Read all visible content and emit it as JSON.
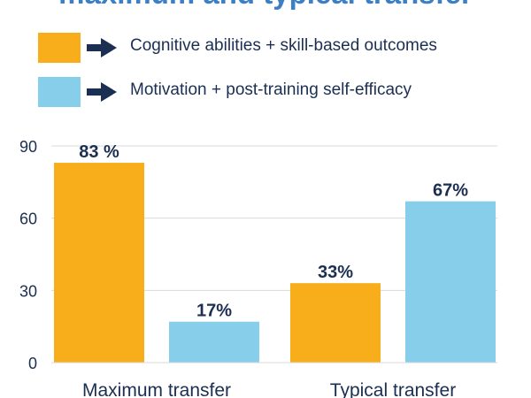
{
  "chart_data": {
    "type": "bar",
    "title": "maximum and typical transfer",
    "categories": [
      "Maximum transfer",
      "Typical transfer"
    ],
    "series": [
      {
        "name": "Cognitive abilities + skill-based outcomes",
        "color": "#f8ad1a",
        "values": [
          83,
          33
        ],
        "labels": [
          "83 %",
          "33%"
        ]
      },
      {
        "name": "Motivation + post-training self-efficacy",
        "color": "#87ceeb",
        "values": [
          17,
          67
        ],
        "labels": [
          "17%",
          "67%"
        ]
      }
    ],
    "ylim": [
      0,
      90
    ],
    "yticks": [
      0,
      30,
      60,
      90
    ],
    "grid": true,
    "legend": "top"
  }
}
